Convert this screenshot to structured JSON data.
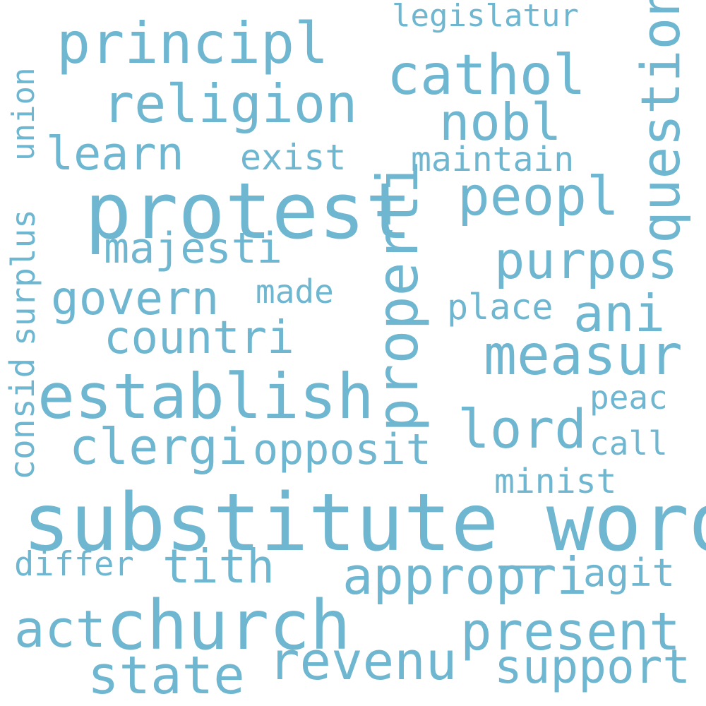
{
  "color": "#6fb6d0",
  "words": {
    "substitute_word": "substitute_word",
    "protest": "protest",
    "establish": "establish",
    "church": "church",
    "principl": "principl",
    "religion": "religion",
    "cathol": "cathol",
    "properti": "properti",
    "question": "question",
    "peopl": "peopl",
    "nobl": "nobl",
    "learn": "learn",
    "purpos": "purpos",
    "measur": "measur",
    "govern": "govern",
    "countri": "countri",
    "majesti": "majesti",
    "clergi": "clergi",
    "opposit": "opposit",
    "lord": "lord",
    "appropri": "appropri",
    "present": "present",
    "revenu": "revenu",
    "support": "support",
    "state": "state",
    "act": "act",
    "tith": "tith",
    "ani": "ani",
    "legislatur": "legislatur",
    "exist": "exist",
    "maintain": "maintain",
    "made": "made",
    "place": "place",
    "peac": "peac",
    "call": "call",
    "minist": "minist",
    "agit": "agit",
    "differ": "differ",
    "union": "union",
    "surplus": "surplus",
    "consid": "consid"
  }
}
